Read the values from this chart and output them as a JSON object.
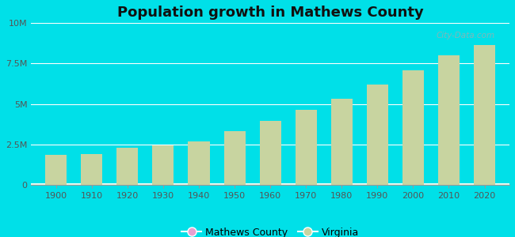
{
  "title": "Population growth in Mathews County",
  "years": [
    1900,
    1910,
    1920,
    1930,
    1940,
    1950,
    1960,
    1970,
    1980,
    1990,
    2000,
    2010,
    2020
  ],
  "virginia_pop": [
    1854184,
    1900000,
    2309187,
    2421851,
    2677773,
    3318680,
    3966949,
    4648494,
    5346818,
    6187358,
    7078515,
    8001024,
    8631393
  ],
  "bar_color": "#c8d4a0",
  "bar_color_county": "#e8a0d0",
  "outer_bg": "#00e0e8",
  "plot_bg_top": "#f5fff8",
  "plot_bg_bottom": "#c8f0d8",
  "ylim": [
    0,
    10000000
  ],
  "yticks": [
    0,
    2500000,
    5000000,
    7500000,
    10000000
  ],
  "ytick_labels": [
    "0",
    "2.5M",
    "5M",
    "7.5M",
    "10M"
  ],
  "watermark": "City-Data.com",
  "legend_county": "Mathews County",
  "legend_state": "Virginia"
}
